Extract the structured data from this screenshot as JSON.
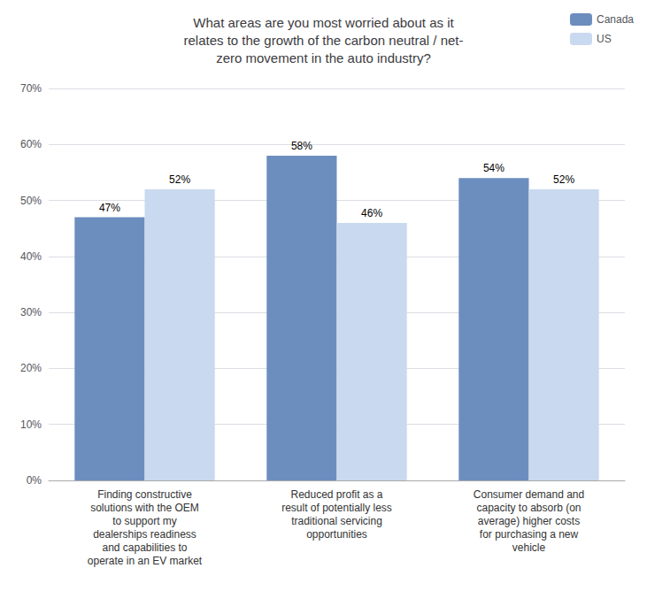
{
  "chart_data": {
    "type": "bar",
    "title": "What areas are you most worried about as it\nrelates to the growth of the carbon neutral / net-\nzero movement in the auto industry?",
    "categories": [
      "Finding constructive\nsolutions with the OEM\nto support my\ndealerships readiness\nand capabilities to\noperate in an EV market",
      "Reduced profit as a\nresult of potentially less\ntraditional servicing\nopportunities",
      "Consumer demand and\ncapacity to absorb (on\naverage) higher costs\nfor purchasing a new\nvehicle"
    ],
    "series": [
      {
        "name": "Canada",
        "color": "#6c8ebf",
        "values": [
          47,
          58,
          54
        ],
        "value_labels": [
          "47%",
          "58%",
          "54%"
        ]
      },
      {
        "name": "US",
        "color": "#c9d9ef",
        "values": [
          52,
          46,
          52
        ],
        "value_labels": [
          "52%",
          "46%",
          "52%"
        ]
      }
    ],
    "ylim": [
      0,
      70
    ],
    "yticks": [
      {
        "value": 0,
        "label": "0%"
      },
      {
        "value": 10,
        "label": "10%"
      },
      {
        "value": 20,
        "label": "20%"
      },
      {
        "value": 30,
        "label": "30%"
      },
      {
        "value": 40,
        "label": "40%"
      },
      {
        "value": 50,
        "label": "50%"
      },
      {
        "value": 60,
        "label": "60%"
      },
      {
        "value": 70,
        "label": "70%"
      }
    ],
    "grid": true,
    "legend": "upper right",
    "data_labels": true
  }
}
